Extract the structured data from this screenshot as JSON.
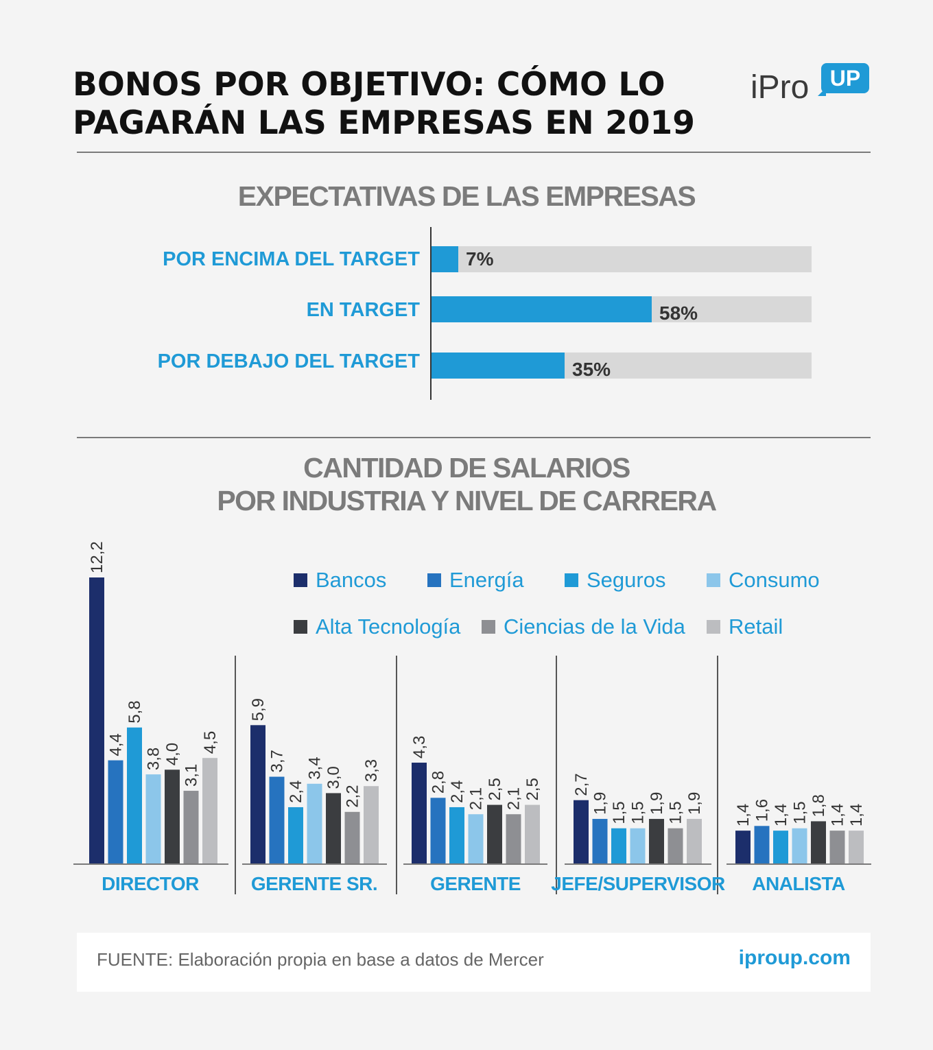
{
  "header": {
    "title_line1": "BONOS POR OBJETIVO: CÓMO LO",
    "title_line2": "PAGARÁN LAS EMPRESAS EN 2019",
    "logo_text": "iPro",
    "logo_badge": "UP"
  },
  "colors": {
    "accent": "#1f9ad6",
    "track": "#d8d8d8",
    "heading_gray": "#7b7b7b"
  },
  "chart_data": [
    {
      "type": "bar",
      "orientation": "horizontal",
      "title": "EXPECTATIVAS DE LAS EMPRESAS",
      "categories": [
        "POR ENCIMA DEL TARGET",
        "EN TARGET",
        "POR DEBAJO DEL TARGET"
      ],
      "values": [
        7,
        58,
        35
      ],
      "value_labels": [
        "7%",
        "58%",
        "35%"
      ],
      "unit": "%",
      "xlim": [
        0,
        100
      ]
    },
    {
      "type": "bar",
      "orientation": "vertical",
      "title_line1": "CANTIDAD DE SALARIOS",
      "title_line2": "POR INDUSTRIA Y NIVEL DE CARRERA",
      "categories": [
        "DIRECTOR",
        "GERENTE SR.",
        "GERENTE",
        "JEFE/SUPERVISOR",
        "ANALISTA"
      ],
      "series": [
        {
          "name": "Bancos",
          "color": "#1c2e6b",
          "values": [
            12.2,
            5.9,
            4.3,
            2.7,
            1.4
          ],
          "labels": [
            "12,2",
            "5,9",
            "4,3",
            "2,7",
            "1,4"
          ]
        },
        {
          "name": "Energía",
          "color": "#2673bf",
          "values": [
            4.4,
            3.7,
            2.8,
            1.9,
            1.6
          ],
          "labels": [
            "4,4",
            "3,7",
            "2,8",
            "1,9",
            "1,6"
          ]
        },
        {
          "name": "Seguros",
          "color": "#1f9ad6",
          "values": [
            5.8,
            2.4,
            2.4,
            1.5,
            1.4
          ],
          "labels": [
            "5,8",
            "2,4",
            "2,4",
            "1,5",
            "1,4"
          ]
        },
        {
          "name": "Consumo",
          "color": "#8cc6ea",
          "values": [
            3.8,
            3.4,
            2.1,
            1.5,
            1.5
          ],
          "labels": [
            "3,8",
            "3,4",
            "2,1",
            "1,5",
            "1,5"
          ]
        },
        {
          "name": "Alta Tecnología",
          "color": "#3b3d40",
          "values": [
            4.0,
            3.0,
            2.5,
            1.9,
            1.8
          ],
          "labels": [
            "4,0",
            "3,0",
            "2,5",
            "1,9",
            "1,8"
          ]
        },
        {
          "name": "Ciencias de la Vida",
          "color": "#8e8f93",
          "values": [
            3.1,
            2.2,
            2.1,
            1.5,
            1.4
          ],
          "labels": [
            "3,1",
            "2,2",
            "2,1",
            "1,5",
            "1,4"
          ]
        },
        {
          "name": "Retail",
          "color": "#bcbdc0",
          "values": [
            4.5,
            3.3,
            2.5,
            1.9,
            1.4
          ],
          "labels": [
            "4,5",
            "3,3",
            "2,5",
            "1,9",
            "1,4"
          ]
        }
      ],
      "legend_position": "top-right"
    }
  ],
  "footer": {
    "source": "FUENTE: Elaboración propia en base a datos de Mercer",
    "site": "iproup.com"
  }
}
